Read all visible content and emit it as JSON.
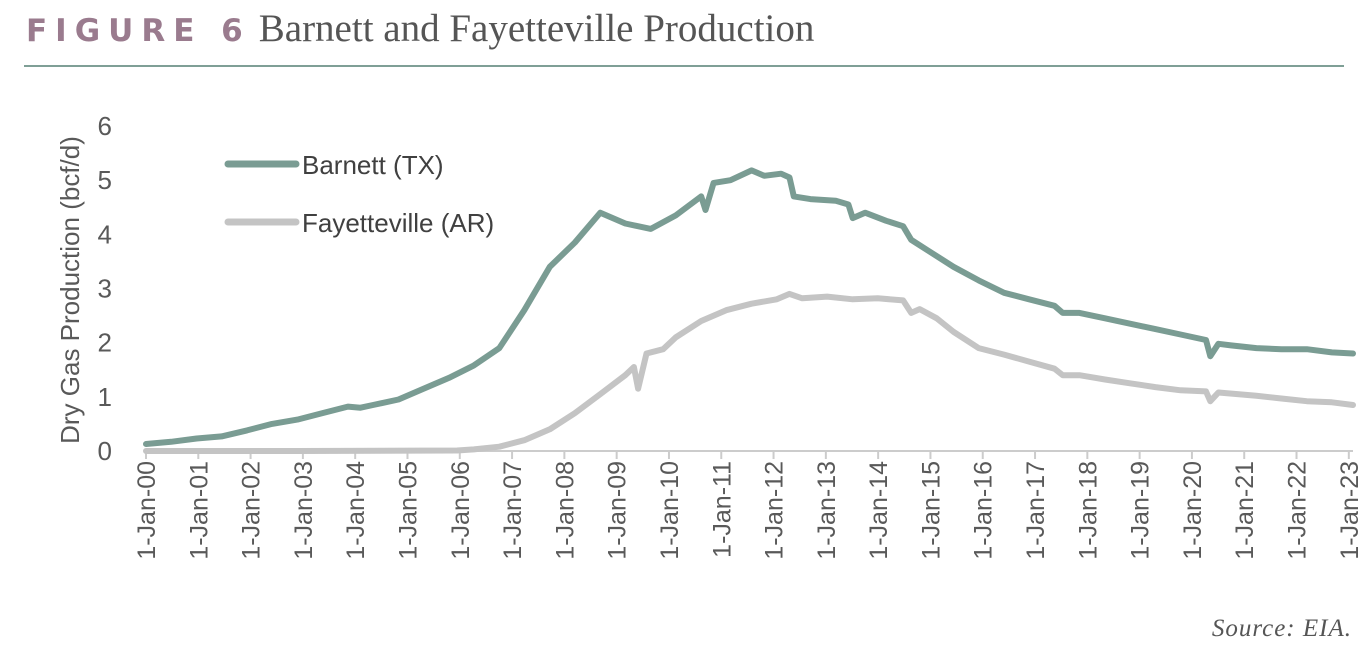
{
  "figure": {
    "label": "FIGURE 6",
    "title": "Barnett and Fayetteville Production",
    "source": "Source: EIA.",
    "accent_color": "#9a7b8e",
    "rule_color": "#7f9f96"
  },
  "chart_data": {
    "type": "line",
    "title": "",
    "xlabel": "",
    "ylabel": "Dry Gas Production (bcf/d)",
    "xlim": [
      "2000-01-01",
      "2023-12-01"
    ],
    "ylim": [
      0,
      6
    ],
    "yticks": [
      0,
      1,
      2,
      3,
      4,
      5,
      6
    ],
    "xtick_labels": [
      "1-Jan-00",
      "1-Jan-01",
      "1-Jan-02",
      "1-Jan-03",
      "1-Jan-04",
      "1-Jan-05",
      "1-Jan-06",
      "1-Jan-07",
      "1-Jan-08",
      "1-Jan-09",
      "1-Jan-10",
      "1-Jan-11",
      "1-Jan-12",
      "1-Jan-13",
      "1-Jan-14",
      "1-Jan-15",
      "1-Jan-16",
      "1-Jan-17",
      "1-Jan-18",
      "1-Jan-19",
      "1-Jan-20",
      "1-Jan-21",
      "1-Jan-22",
      "1-Jan-23"
    ],
    "grid": false,
    "legend_position": "top-left",
    "series": [
      {
        "name": "Barnett (TX)",
        "color": "#7a9c93",
        "points": [
          [
            "2000-01-01",
            0.13
          ],
          [
            "2000-07-01",
            0.17
          ],
          [
            "2001-01-01",
            0.23
          ],
          [
            "2001-07-01",
            0.27
          ],
          [
            "2002-01-01",
            0.38
          ],
          [
            "2002-07-01",
            0.5
          ],
          [
            "2003-01-01",
            0.58
          ],
          [
            "2003-07-01",
            0.7
          ],
          [
            "2004-01-01",
            0.82
          ],
          [
            "2004-04-01",
            0.8
          ],
          [
            "2004-07-01",
            0.85
          ],
          [
            "2005-01-01",
            0.95
          ],
          [
            "2005-07-01",
            1.15
          ],
          [
            "2006-01-01",
            1.35
          ],
          [
            "2006-07-01",
            1.58
          ],
          [
            "2007-01-01",
            1.9
          ],
          [
            "2007-07-01",
            2.6
          ],
          [
            "2008-01-01",
            3.4
          ],
          [
            "2008-07-01",
            3.85
          ],
          [
            "2009-01-01",
            4.4
          ],
          [
            "2009-07-01",
            4.2
          ],
          [
            "2010-01-01",
            4.1
          ],
          [
            "2010-07-01",
            4.35
          ],
          [
            "2011-01-01",
            4.7
          ],
          [
            "2011-02-01",
            4.45
          ],
          [
            "2011-04-01",
            4.95
          ],
          [
            "2011-08-01",
            5.0
          ],
          [
            "2012-01-01",
            5.18
          ],
          [
            "2012-04-01",
            5.08
          ],
          [
            "2012-08-01",
            5.12
          ],
          [
            "2012-10-01",
            5.05
          ],
          [
            "2012-11-01",
            4.7
          ],
          [
            "2013-03-01",
            4.65
          ],
          [
            "2013-09-01",
            4.62
          ],
          [
            "2013-12-01",
            4.55
          ],
          [
            "2014-01-01",
            4.3
          ],
          [
            "2014-04-01",
            4.4
          ],
          [
            "2014-09-01",
            4.25
          ],
          [
            "2015-01-01",
            4.15
          ],
          [
            "2015-03-01",
            3.9
          ],
          [
            "2015-07-01",
            3.7
          ],
          [
            "2016-01-01",
            3.4
          ],
          [
            "2016-07-01",
            3.15
          ],
          [
            "2017-01-01",
            2.92
          ],
          [
            "2017-07-01",
            2.8
          ],
          [
            "2018-01-01",
            2.68
          ],
          [
            "2018-03-01",
            2.55
          ],
          [
            "2018-07-01",
            2.55
          ],
          [
            "2019-01-01",
            2.45
          ],
          [
            "2019-07-01",
            2.35
          ],
          [
            "2020-01-01",
            2.25
          ],
          [
            "2020-07-01",
            2.15
          ],
          [
            "2021-01-01",
            2.05
          ],
          [
            "2021-02-01",
            1.75
          ],
          [
            "2021-04-01",
            1.98
          ],
          [
            "2021-07-01",
            1.95
          ],
          [
            "2022-01-01",
            1.9
          ],
          [
            "2022-07-01",
            1.88
          ],
          [
            "2023-01-01",
            1.88
          ],
          [
            "2023-07-01",
            1.82
          ],
          [
            "2023-12-01",
            1.8
          ]
        ]
      },
      {
        "name": "Fayetteville (AR)",
        "color": "#c4c4c4",
        "points": [
          [
            "2000-01-01",
            0.0
          ],
          [
            "2003-01-01",
            0.0
          ],
          [
            "2006-03-01",
            0.01
          ],
          [
            "2006-07-01",
            0.03
          ],
          [
            "2007-01-01",
            0.08
          ],
          [
            "2007-07-01",
            0.2
          ],
          [
            "2008-01-01",
            0.4
          ],
          [
            "2008-07-01",
            0.7
          ],
          [
            "2009-01-01",
            1.05
          ],
          [
            "2009-07-01",
            1.4
          ],
          [
            "2009-09-01",
            1.55
          ],
          [
            "2009-10-01",
            1.15
          ],
          [
            "2009-12-01",
            1.8
          ],
          [
            "2010-04-01",
            1.88
          ],
          [
            "2010-07-01",
            2.1
          ],
          [
            "2011-01-01",
            2.4
          ],
          [
            "2011-07-01",
            2.6
          ],
          [
            "2012-01-01",
            2.72
          ],
          [
            "2012-07-01",
            2.8
          ],
          [
            "2012-10-01",
            2.9
          ],
          [
            "2013-01-01",
            2.82
          ],
          [
            "2013-07-01",
            2.85
          ],
          [
            "2014-01-01",
            2.8
          ],
          [
            "2014-07-01",
            2.82
          ],
          [
            "2015-01-01",
            2.78
          ],
          [
            "2015-03-01",
            2.55
          ],
          [
            "2015-05-01",
            2.62
          ],
          [
            "2015-09-01",
            2.45
          ],
          [
            "2016-01-01",
            2.2
          ],
          [
            "2016-07-01",
            1.9
          ],
          [
            "2017-01-01",
            1.78
          ],
          [
            "2017-07-01",
            1.65
          ],
          [
            "2018-01-01",
            1.52
          ],
          [
            "2018-03-01",
            1.4
          ],
          [
            "2018-07-01",
            1.4
          ],
          [
            "2019-01-01",
            1.32
          ],
          [
            "2019-07-01",
            1.25
          ],
          [
            "2020-01-01",
            1.18
          ],
          [
            "2020-07-01",
            1.12
          ],
          [
            "2021-01-01",
            1.1
          ],
          [
            "2021-02-01",
            0.92
          ],
          [
            "2021-04-01",
            1.08
          ],
          [
            "2022-01-01",
            1.02
          ],
          [
            "2022-07-01",
            0.97
          ],
          [
            "2023-01-01",
            0.92
          ],
          [
            "2023-07-01",
            0.9
          ],
          [
            "2023-12-01",
            0.85
          ]
        ]
      }
    ]
  }
}
